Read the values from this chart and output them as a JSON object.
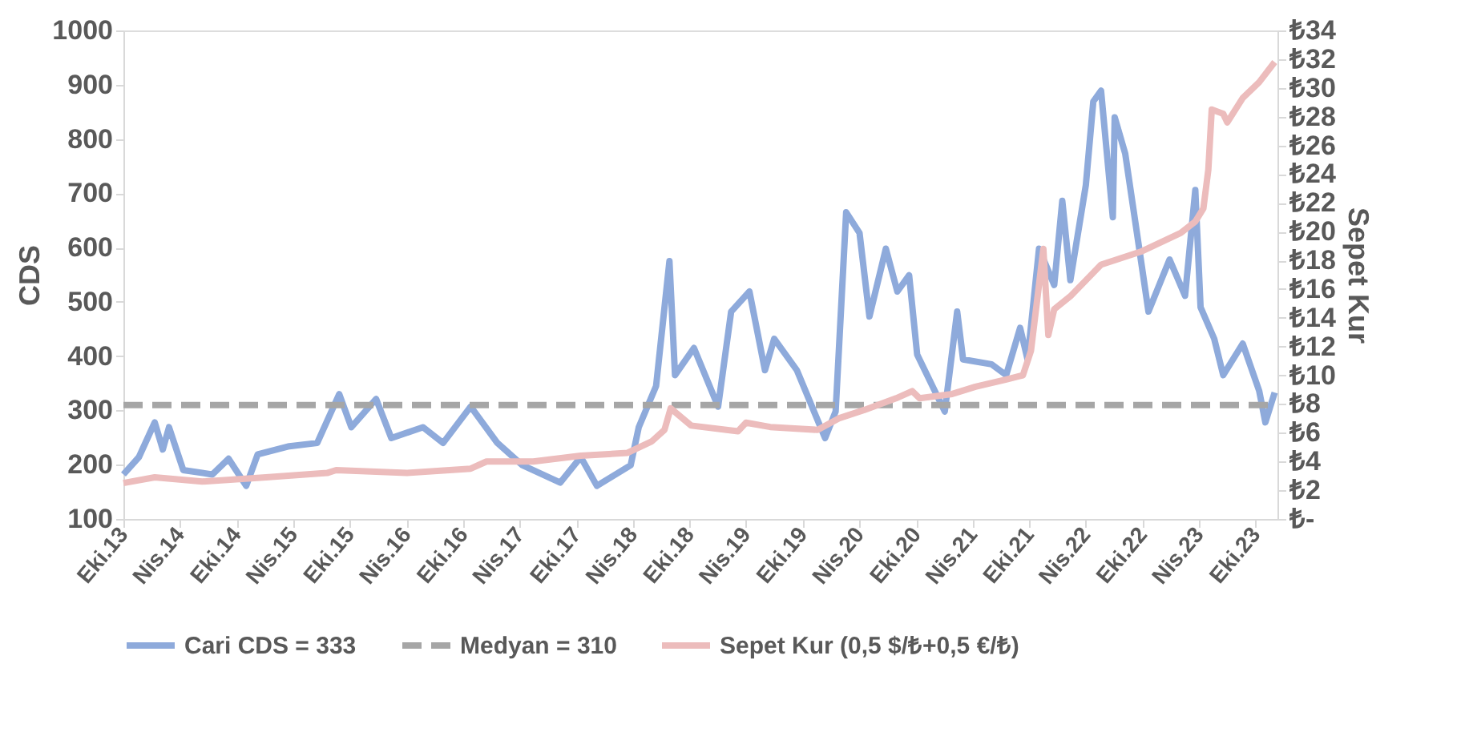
{
  "chart_data": {
    "type": "line",
    "ylabel": "CDS",
    "y2label": "Sepet Kur",
    "legend": "bottom",
    "grid": false,
    "xlim": [
      "2013-10-01",
      "2023-12-10"
    ],
    "xticks": [
      {
        "value": "2013-10-01",
        "label": "Eki.13"
      },
      {
        "value": "2014-04-01",
        "label": "Nis.14"
      },
      {
        "value": "2014-10-01",
        "label": "Eki.14"
      },
      {
        "value": "2015-04-01",
        "label": "Nis.15"
      },
      {
        "value": "2015-10-01",
        "label": "Eki.15"
      },
      {
        "value": "2016-04-01",
        "label": "Nis.16"
      },
      {
        "value": "2016-10-01",
        "label": "Eki.16"
      },
      {
        "value": "2017-04-01",
        "label": "Nis.17"
      },
      {
        "value": "2017-10-01",
        "label": "Eki.17"
      },
      {
        "value": "2018-04-01",
        "label": "Nis.18"
      },
      {
        "value": "2018-10-01",
        "label": "Eki.18"
      },
      {
        "value": "2019-04-01",
        "label": "Nis.19"
      },
      {
        "value": "2019-10-01",
        "label": "Eki.19"
      },
      {
        "value": "2020-04-01",
        "label": "Nis.20"
      },
      {
        "value": "2020-10-01",
        "label": "Eki.20"
      },
      {
        "value": "2021-04-01",
        "label": "Nis.21"
      },
      {
        "value": "2021-10-01",
        "label": "Eki.21"
      },
      {
        "value": "2022-04-01",
        "label": "Nis.22"
      },
      {
        "value": "2022-10-01",
        "label": "Eki.22"
      },
      {
        "value": "2023-04-01",
        "label": "Nis.23"
      },
      {
        "value": "2023-10-01",
        "label": "Eki.23"
      }
    ],
    "ylim": [
      100,
      1000
    ],
    "yticks": [
      100,
      200,
      300,
      400,
      500,
      600,
      700,
      800,
      900,
      1000
    ],
    "y2lim": [
      0,
      34
    ],
    "y2ticks": [
      {
        "value": 0,
        "label": "₺-"
      },
      {
        "value": 2,
        "label": "₺2"
      },
      {
        "value": 4,
        "label": "₺4"
      },
      {
        "value": 6,
        "label": "₺6"
      },
      {
        "value": 8,
        "label": "₺8"
      },
      {
        "value": 10,
        "label": "₺10"
      },
      {
        "value": 12,
        "label": "₺12"
      },
      {
        "value": 14,
        "label": "₺14"
      },
      {
        "value": 16,
        "label": "₺16"
      },
      {
        "value": 18,
        "label": "₺18"
      },
      {
        "value": 20,
        "label": "₺20"
      },
      {
        "value": 22,
        "label": "₺22"
      },
      {
        "value": 24,
        "label": "₺24"
      },
      {
        "value": 26,
        "label": "₺26"
      },
      {
        "value": 28,
        "label": "₺28"
      },
      {
        "value": 30,
        "label": "₺30"
      },
      {
        "value": 32,
        "label": "₺32"
      },
      {
        "value": 34,
        "label": "₺34"
      }
    ],
    "series": [
      {
        "name": "Cari CDS = 333",
        "color": "#8eaadb",
        "line_style": "solid",
        "x": [
          "2013-10-01",
          "2013-11-20",
          "2014-01-10",
          "2014-02-05",
          "2014-02-25",
          "2014-04-12",
          "2014-07-15",
          "2014-09-05",
          "2014-11-01",
          "2014-12-08",
          "2015-03-20",
          "2015-06-18",
          "2015-08-28",
          "2015-10-06",
          "2015-12-25",
          "2016-02-12",
          "2016-05-24",
          "2016-07-28",
          "2016-10-25",
          "2017-01-19",
          "2017-04-10",
          "2017-08-10",
          "2017-10-15",
          "2017-12-06",
          "2018-03-25",
          "2018-04-20",
          "2018-06-15",
          "2018-07-28",
          "2018-08-15",
          "2018-10-15",
          "2019-01-01",
          "2019-02-12",
          "2019-04-12",
          "2019-06-01",
          "2019-07-01",
          "2019-09-12",
          "2019-12-12",
          "2020-01-15",
          "2020-02-18",
          "2020-04-01",
          "2020-05-03",
          "2020-06-25",
          "2020-08-01",
          "2020-09-08",
          "2020-10-04",
          "2021-01-01",
          "2021-02-10",
          "2021-03-01",
          "2021-06-01",
          "2021-07-18",
          "2021-09-01",
          "2021-09-25",
          "2021-11-01",
          "2021-12-20",
          "2022-01-15",
          "2022-02-10",
          "2022-04-01",
          "2022-04-25",
          "2022-05-20",
          "2022-06-27",
          "2022-07-03",
          "2022-08-06",
          "2022-09-15",
          "2022-10-20",
          "2022-12-27",
          "2023-02-15",
          "2023-03-20",
          "2023-04-06",
          "2023-05-20",
          "2023-06-18",
          "2023-08-20",
          "2023-10-12",
          "2023-11-01",
          "2023-12-01"
        ],
        "values": [
          182,
          214,
          278,
          228,
          269,
          190,
          182,
          211,
          161,
          219,
          234,
          240,
          330,
          269,
          321,
          249,
          269,
          240,
          307,
          240,
          199,
          167,
          214,
          161,
          199,
          269,
          345,
          575,
          365,
          415,
          307,
          482,
          519,
          374,
          432,
          374,
          249,
          298,
          665,
          627,
          473,
          598,
          519,
          549,
          403,
          298,
          482,
          394,
          385,
          365,
          452,
          394,
          598,
          531,
          686,
          540,
          715,
          869,
          889,
          656,
          840,
          773,
          618,
          482,
          578,
          511,
          706,
          490,
          432,
          365,
          423,
          336,
          278,
          333
        ]
      },
      {
        "name": "Medyan = 310",
        "color": "#a6a6a6",
        "line_style": "dashed",
        "x": [
          "2013-10-01",
          "2023-12-01"
        ],
        "values": [
          310,
          310
        ]
      },
      {
        "name": "Sepet Kur (0,5 $/₺+0,5 €/₺)",
        "color": "#ecbcbc",
        "line_style": "solid",
        "axis": "y2",
        "x": [
          "2013-10-01",
          "2014-01-10",
          "2014-06-12",
          "2015-01-04",
          "2015-07-20",
          "2015-08-18",
          "2016-04-01",
          "2016-10-25",
          "2016-12-15",
          "2017-05-15",
          "2017-10-15",
          "2018-03-15",
          "2018-06-01",
          "2018-07-12",
          "2018-08-01",
          "2018-10-06",
          "2019-03-06",
          "2019-04-01",
          "2019-06-18",
          "2019-11-18",
          "2020-01-25",
          "2020-04-18",
          "2020-07-28",
          "2020-09-18",
          "2020-10-12",
          "2021-01-25",
          "2021-04-10",
          "2021-07-18",
          "2021-09-10",
          "2021-10-06",
          "2021-11-15",
          "2021-12-01",
          "2021-12-20",
          "2022-02-10",
          "2022-05-20",
          "2022-09-25",
          "2023-02-01",
          "2023-03-20",
          "2023-04-15",
          "2023-05-01",
          "2023-05-12",
          "2023-06-18",
          "2023-07-01",
          "2023-08-20",
          "2023-10-12",
          "2023-12-01"
        ],
        "values": [
          2.5,
          2.9,
          2.6,
          2.9,
          3.2,
          3.4,
          3.2,
          3.5,
          4.0,
          4.0,
          4.4,
          4.6,
          5.4,
          6.2,
          7.7,
          6.5,
          6.1,
          6.7,
          6.4,
          6.2,
          7.0,
          7.6,
          8.4,
          8.9,
          8.4,
          8.7,
          9.2,
          9.7,
          10.0,
          11.7,
          18.8,
          12.8,
          14.6,
          15.5,
          17.7,
          18.6,
          19.9,
          20.7,
          21.6,
          24.3,
          28.5,
          28.2,
          27.6,
          29.3,
          30.4,
          31.8
        ]
      }
    ]
  }
}
